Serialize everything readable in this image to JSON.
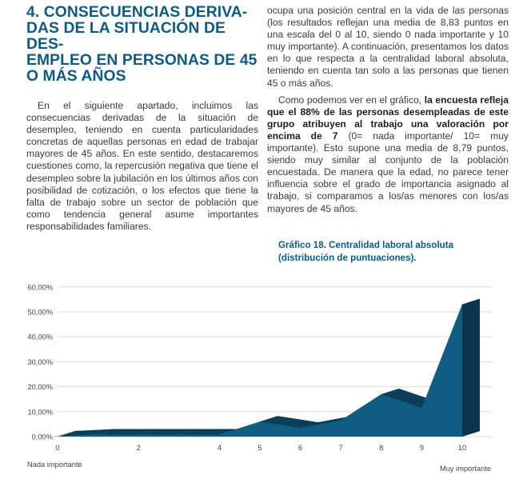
{
  "left_column": {
    "heading_lines": [
      "4. CONSECUENCIAS DERIVA-",
      "DAS DE LA SITUACIÓN DE DES-",
      "EMPLEO EN PERSONAS DE 45",
      "O MÁS AÑOS"
    ],
    "paragraph": "En el siguiente apartado, incluimos las consecuencias derivadas de la situación de desempleo, teniendo en cuenta particularidades concretas de aquellas personas en edad de trabajar mayores de 45 años. En este sentido, destacaremos cuestiones como, la repercusión negativa que tiene el desempleo sobre la jubilación en los últimos años con posibilidad de cotización, o los efectos que tiene la falta de trabajo sobre un sector de población que como tendencia general asume importantes responsabilidades familiares."
  },
  "right_column": {
    "paragraph_1": "ocupa una posición central en la vida de las personas (los resultados reflejan una media de 8,83 puntos en una escala del 0 al 10, siendo 0 nada importante y 10 muy importante). A continuación, presentamos los datos en lo que respecta a la centralidad laboral absoluta, teniendo en cuenta tan solo a las personas que tienen 45 o más años.",
    "paragraph_2_start": "Como podemos ver en el gráfico, ",
    "paragraph_2_bold": "la encuesta refleja que el 88% de las personas desempleadas de este grupo atribuyen al trabajo una valoración por encima de 7",
    "paragraph_2_end": " (0= nada importante/ 10= muy importante). Esto supone una media de 8,79 puntos, siendo muy similar al conjunto de la población encuestada. De manera que la edad, no parece tener influencia sobre el grado de importancia asignado al trabajo, si comparamos a los/as menores con los/as mayores de 45 años."
  },
  "chart_caption": {
    "line_1": "Gráfico 18. Centralidad laboral absoluta",
    "line_2": "(distribución de puntuaciones)."
  },
  "chart_data": {
    "type": "area",
    "style": "3d",
    "x": [
      0,
      1,
      2,
      3,
      4,
      5,
      6,
      7,
      8,
      9,
      10
    ],
    "x_tick_labels": [
      "0",
      "2",
      "4",
      "5",
      "6",
      "7",
      "8",
      "9",
      "10"
    ],
    "x_tick_positions": [
      0,
      2,
      4,
      5,
      6,
      7,
      8,
      9,
      10
    ],
    "series": [
      {
        "values": [
          0.0,
          0.8,
          0.8,
          0.8,
          0.8,
          6.0,
          3.5,
          6.5,
          17.0,
          11.5,
          53.0
        ]
      }
    ],
    "y_tick_labels": [
      "0,00%",
      "10,00%",
      "20,00%",
      "30,00%",
      "40,00%",
      "50,00%",
      "60,00%"
    ],
    "ylim": [
      0,
      60
    ],
    "x_left_label": "Nada importante",
    "x_right_label": "Muy importante",
    "grid": true,
    "colors": {
      "front": "#0f5d82",
      "side": "#0b3e58",
      "grid": "#d9d9d9"
    }
  }
}
